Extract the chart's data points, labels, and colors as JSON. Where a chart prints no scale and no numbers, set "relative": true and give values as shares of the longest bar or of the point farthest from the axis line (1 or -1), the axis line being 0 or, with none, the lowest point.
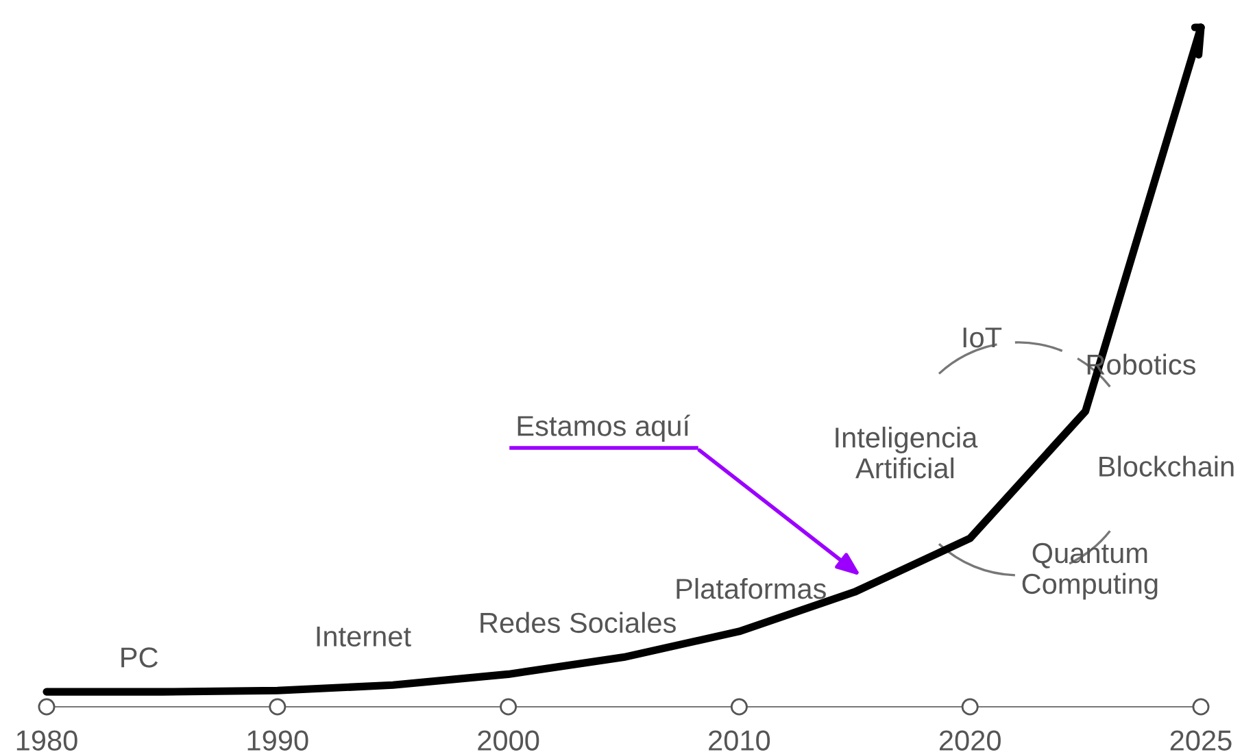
{
  "chart_data": {
    "type": "line",
    "relative": true,
    "tick_labels": "x",
    "grid": false,
    "legend": false,
    "marker": "none",
    "line_style": "solid",
    "categories": [
      "1980",
      null,
      "1990",
      null,
      "2000",
      null,
      "2010",
      null,
      "2020",
      null,
      "2025"
    ],
    "series": [
      {
        "color": "#000000",
        "values": [
          0.022,
          0.022,
          0.024,
          0.032,
          0.048,
          0.073,
          0.111,
          0.169,
          0.248,
          0.435,
          1
        ]
      }
    ],
    "annotations": [
      "PC",
      "Internet",
      "Redes Sociales",
      "Plataformas",
      "Inteligencia\nArtificial",
      "IoT",
      "Robotics",
      "Blockchain",
      "Quantum\nComputing",
      "Estamos aquí"
    ]
  }
}
